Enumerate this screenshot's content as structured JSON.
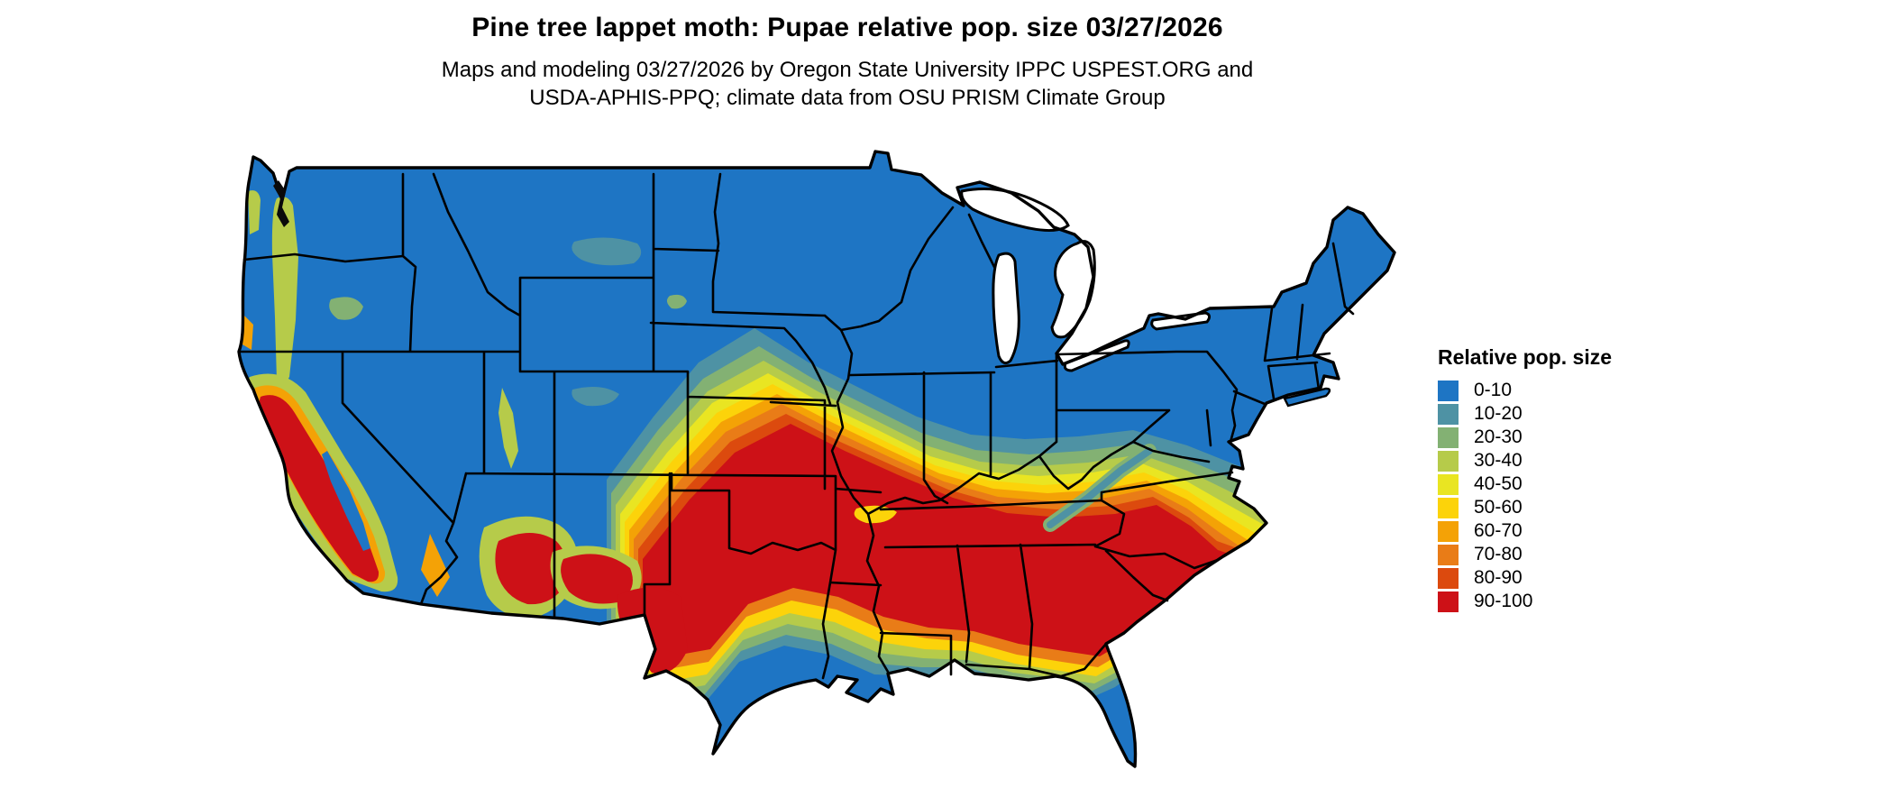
{
  "header": {
    "title": "Pine tree lappet moth: Pupae relative pop. size 03/27/2026",
    "subtitle": "Maps and modeling 03/27/2026 by Oregon State University IPPC USPEST.ORG and\nUSDA-APHIS-PPQ; climate data from OSU PRISM Climate Group"
  },
  "legend": {
    "title": "Relative pop. size",
    "items": [
      {
        "label": "0-10",
        "color": "#1E75C4"
      },
      {
        "label": "10-20",
        "color": "#4E92A4"
      },
      {
        "label": "20-30",
        "color": "#83B173"
      },
      {
        "label": "30-40",
        "color": "#B6CB4A"
      },
      {
        "label": "40-50",
        "color": "#E9E522"
      },
      {
        "label": "50-60",
        "color": "#FCD30A"
      },
      {
        "label": "60-70",
        "color": "#F4A206"
      },
      {
        "label": "70-80",
        "color": "#E97C17"
      },
      {
        "label": "80-90",
        "color": "#DC4A0E"
      },
      {
        "label": "90-100",
        "color": "#CD1117"
      }
    ]
  },
  "map": {
    "region_label": "contiguous-united-states",
    "border_color": "#000000",
    "water_color": "#ffffff",
    "background_color": "#ffffff"
  }
}
